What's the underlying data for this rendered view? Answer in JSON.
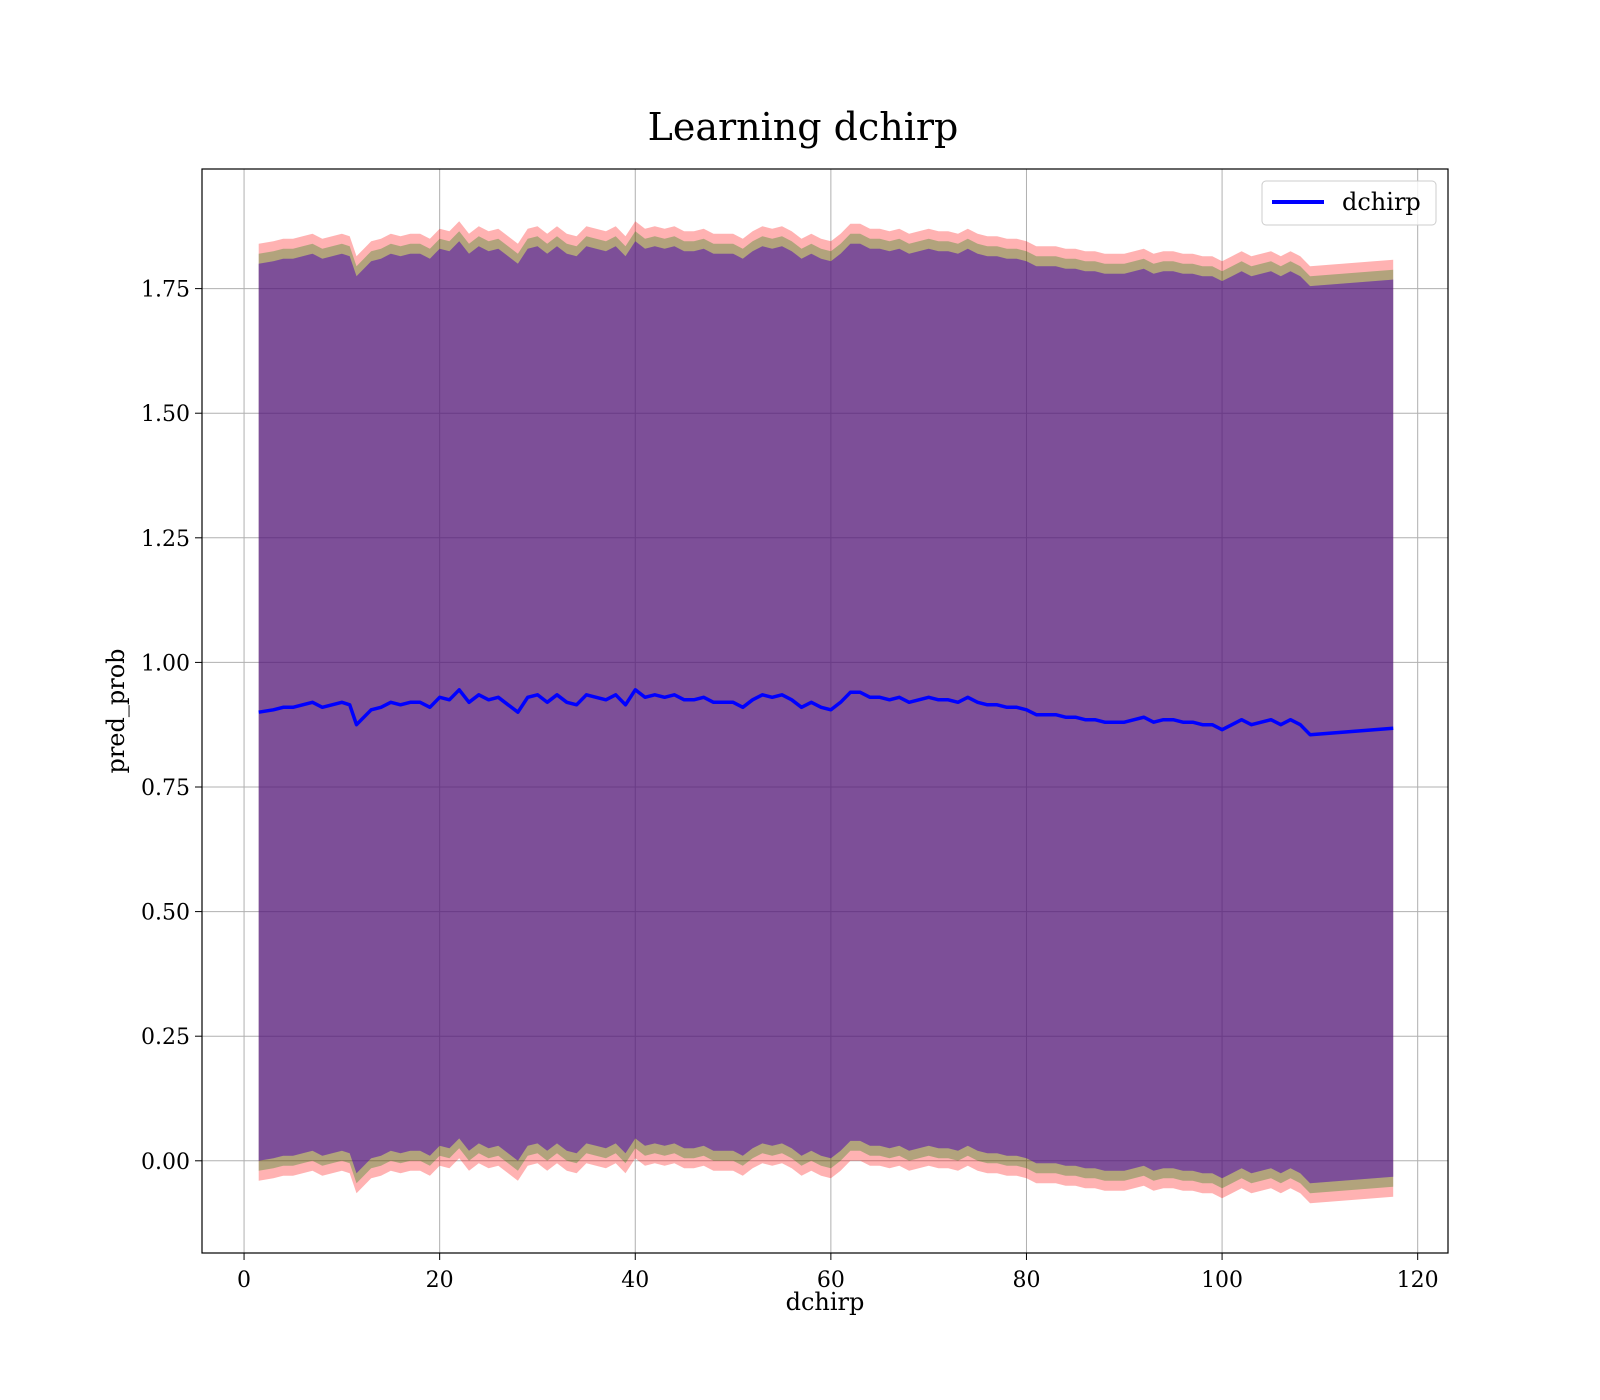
{
  "chart_data": {
    "type": "line",
    "title": "Learning dchirp",
    "xlabel": "dchirp",
    "ylabel": "pred_prob",
    "xlim": [
      -4.3,
      123.1
    ],
    "ylim": [
      -0.185,
      1.99
    ],
    "xticks": [
      0,
      20,
      40,
      60,
      80,
      100,
      120
    ],
    "xtick_labels": [
      "0",
      "20",
      "40",
      "60",
      "80",
      "100",
      "120"
    ],
    "yticks": [
      0.0,
      0.25,
      0.5,
      0.75,
      1.0,
      1.25,
      1.5,
      1.75
    ],
    "ytick_labels": [
      "0.00",
      "0.25",
      "0.50",
      "0.75",
      "1.00",
      "1.25",
      "1.50",
      "1.75"
    ],
    "grid": true,
    "legend": {
      "position": "top-right",
      "entries": [
        "dchirp"
      ]
    },
    "series": [
      {
        "name": "dchirp",
        "color": "#0000ff",
        "x": [
          1.5,
          3,
          4,
          5,
          6,
          7,
          8,
          9,
          10,
          10.8,
          11.5,
          12,
          13,
          14,
          15,
          16,
          17,
          18,
          19,
          20,
          21,
          22,
          23,
          24,
          25,
          26,
          27,
          28,
          29,
          30,
          31,
          32,
          33,
          34,
          35,
          36,
          37,
          38,
          39,
          40,
          41,
          42,
          43,
          44,
          45,
          46,
          47,
          48,
          49,
          50,
          51,
          52,
          53,
          54,
          55,
          56,
          57,
          58,
          59,
          60,
          61,
          62,
          63,
          64,
          65,
          66,
          67,
          68,
          69,
          70,
          71,
          72,
          73,
          74,
          75,
          76,
          77,
          78,
          79,
          80,
          81,
          82,
          83,
          84,
          85,
          86,
          87,
          88,
          89,
          90,
          91,
          92,
          93,
          94,
          95,
          96,
          97,
          98,
          99,
          100,
          101,
          102,
          103,
          104,
          105,
          106,
          107,
          108,
          109,
          117.5
        ],
        "y": [
          0.9,
          0.905,
          0.91,
          0.91,
          0.915,
          0.92,
          0.91,
          0.915,
          0.92,
          0.915,
          0.875,
          0.885,
          0.905,
          0.91,
          0.92,
          0.915,
          0.92,
          0.92,
          0.91,
          0.93,
          0.925,
          0.945,
          0.92,
          0.935,
          0.925,
          0.93,
          0.915,
          0.9,
          0.93,
          0.935,
          0.92,
          0.935,
          0.92,
          0.915,
          0.935,
          0.93,
          0.925,
          0.935,
          0.915,
          0.945,
          0.93,
          0.935,
          0.93,
          0.935,
          0.925,
          0.925,
          0.93,
          0.92,
          0.92,
          0.92,
          0.91,
          0.925,
          0.935,
          0.93,
          0.935,
          0.925,
          0.91,
          0.92,
          0.91,
          0.905,
          0.92,
          0.94,
          0.94,
          0.93,
          0.93,
          0.925,
          0.93,
          0.92,
          0.925,
          0.93,
          0.925,
          0.925,
          0.92,
          0.93,
          0.92,
          0.915,
          0.915,
          0.91,
          0.91,
          0.905,
          0.895,
          0.895,
          0.895,
          0.89,
          0.89,
          0.885,
          0.885,
          0.88,
          0.88,
          0.88,
          0.885,
          0.89,
          0.88,
          0.885,
          0.885,
          0.88,
          0.88,
          0.875,
          0.875,
          0.865,
          0.875,
          0.885,
          0.875,
          0.88,
          0.885,
          0.875,
          0.885,
          0.875,
          0.855,
          0.868
        ]
      }
    ],
    "bands": [
      {
        "color": "#ff0000",
        "opacity": 0.3,
        "offset_upper": 0.94,
        "offset_lower": 0.94
      },
      {
        "color": "#008000",
        "opacity": 0.3,
        "offset_upper": 0.92,
        "offset_lower": 0.92
      },
      {
        "color": "#0000ff",
        "opacity": 0.3,
        "offset_upper": 0.9,
        "offset_lower": 0.9
      },
      {
        "color": "#800080",
        "opacity": 0.3,
        "offset_upper": 0.9,
        "offset_lower": 0.9
      }
    ]
  }
}
